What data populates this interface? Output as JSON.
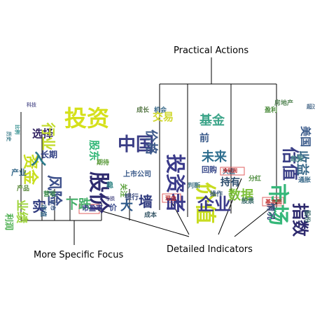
{
  "labels": {
    "practical_actions": "Practical Actions",
    "more_specific_focus": "More Specific Focus",
    "detailed_indicators": "Detailed Indicators"
  },
  "clouds": [
    {
      "words": [
        {
          "t": "科技",
          "c": "#6b6b9e",
          "r": 0
        },
        {
          "t": "历史",
          "c": "#3e7d8b",
          "r": 90
        },
        {
          "t": "比例",
          "c": "#2a8a8a",
          "r": 90
        },
        {
          "t": "资金",
          "c": "#c9de1e",
          "r": 90
        },
        {
          "t": "产业",
          "c": "#3d6e8e",
          "r": 0
        },
        {
          "t": "选择",
          "c": "#2f1f5f",
          "r": 0
        },
        {
          "t": "行业",
          "c": "#c2db2a",
          "r": 90
        },
        {
          "t": "长期",
          "c": "#2e3d82",
          "r": 0
        },
        {
          "t": "风险",
          "c": "#3c4f8a",
          "r": 90
        },
        {
          "t": "业绩",
          "c": "#9dd43a",
          "r": 90
        },
        {
          "t": "入",
          "c": "#2a7a8a",
          "r": 0
        },
        {
          "t": "上市",
          "c": "#3c5a8a",
          "r": 90
        },
        {
          "t": "产品",
          "c": "#5a8a3a",
          "r": 0
        },
        {
          "t": "利润",
          "c": "#4caf50",
          "r": 90
        },
        {
          "t": "营收",
          "c": "#3a8a4a",
          "r": 0
        },
        {
          "t": "实",
          "c": "#2f3a7e",
          "r": 0
        },
        {
          "t": "市值",
          "c": "#3a6a8a",
          "r": 90
        }
      ]
    },
    {
      "words": [
        {
          "t": "投资",
          "c": "#d5e01a",
          "r": 0
        },
        {
          "t": "股东",
          "c": "#35b879",
          "r": 90
        },
        {
          "t": "股价",
          "c": "#2e2a6e",
          "r": 90
        },
        {
          "t": "下跌",
          "c": "#46b06a",
          "r": 0
        },
        {
          "t": "稳",
          "c": "#3a8a8a",
          "r": 0
        },
        {
          "t": "期待",
          "c": "#5a9a3a",
          "r": 0
        },
        {
          "t": "价",
          "c": "#3b4c8c",
          "r": 0
        },
        {
          "t": "市盈率",
          "c": "#3a3a8a",
          "r": 0
        },
        {
          "t": "亏损",
          "c": "#6a6a9a",
          "r": 0
        }
      ]
    },
    {
      "words": [
        {
          "t": "成长",
          "c": "#5a7a4a",
          "r": 0
        },
        {
          "t": "机会",
          "c": "#3a6a8a",
          "r": 0
        },
        {
          "t": "交易",
          "c": "#d0d830",
          "r": 0
        },
        {
          "t": "中国",
          "c": "#3b3e86",
          "r": 0
        },
        {
          "t": "价格",
          "c": "#3e5a8a",
          "r": 90
        },
        {
          "t": "投资者",
          "c": "#3a3a8a",
          "r": 90
        },
        {
          "t": "上市公司",
          "c": "#3a5a8a",
          "r": 0
        },
        {
          "t": "关注",
          "c": "#5aa03a",
          "r": 90
        },
        {
          "t": "墙",
          "c": "#2f3a7e",
          "r": 0
        },
        {
          "t": "大",
          "c": "#2f5a8a",
          "r": 0
        },
        {
          "t": "银行",
          "c": "#3a4a7e",
          "r": 0
        },
        {
          "t": "成本",
          "c": "#3a5a6a",
          "r": 0
        },
        {
          "t": "现金",
          "c": "#c03030",
          "r": 0
        }
      ]
    },
    {
      "words": [
        {
          "t": "价值",
          "c": "#c8dc20",
          "r": 90
        },
        {
          "t": "基金",
          "c": "#3da58a",
          "r": 0
        },
        {
          "t": "前",
          "c": "#3a5a8a",
          "r": 0
        },
        {
          "t": "未来",
          "c": "#2e6e8e",
          "r": 0
        },
        {
          "t": "企业",
          "c": "#3a3a8a",
          "r": 0
        },
        {
          "t": "回购",
          "c": "#3a4a8a",
          "r": 0
        },
        {
          "t": "持有",
          "c": "#2a4a6a",
          "r": 0
        },
        {
          "t": "数据",
          "c": "#7dc03a",
          "r": 0
        },
        {
          "t": "大盘",
          "c": "#3a6a8a",
          "r": 0
        },
        {
          "t": "净利润",
          "c": "#c03030",
          "r": 0
        },
        {
          "t": "分红",
          "c": "#4a8a3a",
          "r": 0
        },
        {
          "t": "股票",
          "c": "#3a6a6a",
          "r": 0
        },
        {
          "t": "判断",
          "c": "#4a7a8a",
          "r": 0
        },
        {
          "t": "操作",
          "c": "#3a5a7a",
          "r": 0
        }
      ]
    },
    {
      "words": [
        {
          "t": "市场",
          "c": "#35b779",
          "r": 90
        },
        {
          "t": "估值",
          "c": "#3a3e86",
          "r": 90
        },
        {
          "t": "指数",
          "c": "#2e2a6e",
          "r": 90
        },
        {
          "t": "收益",
          "c": "#3a6a8a",
          "r": 90
        },
        {
          "t": "美国",
          "c": "#3a5a8a",
          "r": 90
        },
        {
          "t": "情况",
          "c": "#3a4a7e",
          "r": 90
        },
        {
          "t": "基本面",
          "c": "#c03030",
          "r": 0
        },
        {
          "t": "盈利",
          "c": "#4a8a3a",
          "r": 0
        },
        {
          "t": "房地产",
          "c": "#5a8a5a",
          "r": 0
        },
        {
          "t": "股份",
          "c": "#3a6a6a",
          "r": 90
        },
        {
          "t": "趋势",
          "c": "#4a8a8a",
          "r": 0
        },
        {
          "t": "通胀",
          "c": "#3a6a8a",
          "r": 0
        },
        {
          "t": "超过",
          "c": "#4a6a8a",
          "r": 0
        }
      ]
    }
  ]
}
